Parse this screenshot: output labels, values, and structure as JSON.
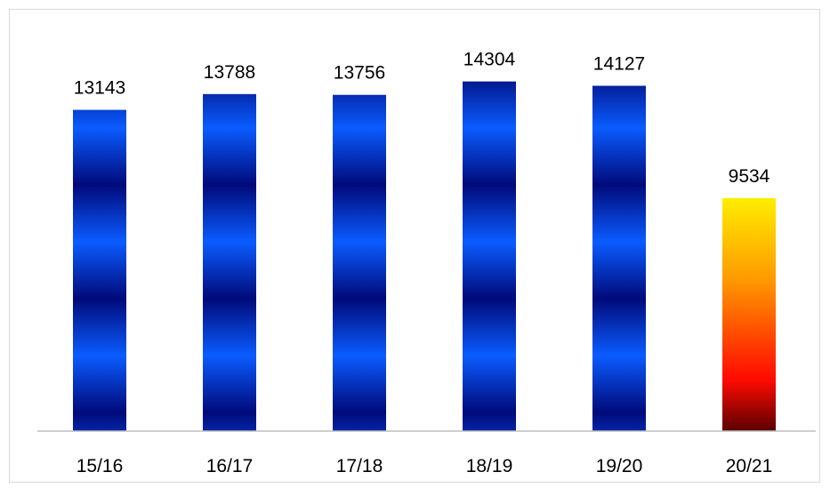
{
  "chart_data": {
    "type": "bar",
    "title": "",
    "xlabel": "",
    "ylabel": "",
    "categories": [
      "15/16",
      "16/17",
      "17/18",
      "18/19",
      "19/20",
      "20/21"
    ],
    "values": [
      13143,
      13788,
      13756,
      14304,
      14127,
      9534
    ],
    "value_labels": [
      "13143",
      "13788",
      "13756",
      "14304",
      "14127",
      "9534"
    ],
    "ylim": [
      0,
      15200
    ],
    "grid": false,
    "legend": "none",
    "bar_fills": [
      "blue-banded",
      "blue-banded",
      "blue-banded",
      "blue-banded",
      "blue-banded",
      "fire-gradient"
    ],
    "colors": {
      "blue_dark": "#000a7a",
      "blue_bright": "#0a5cff",
      "fire_top": "#ffee00",
      "fire_mid": "#ff9900",
      "fire_red": "#ff0a00",
      "fire_bottom": "#5a0000",
      "axis": "#bfbfbf",
      "frame": "#d9d9d9"
    }
  }
}
